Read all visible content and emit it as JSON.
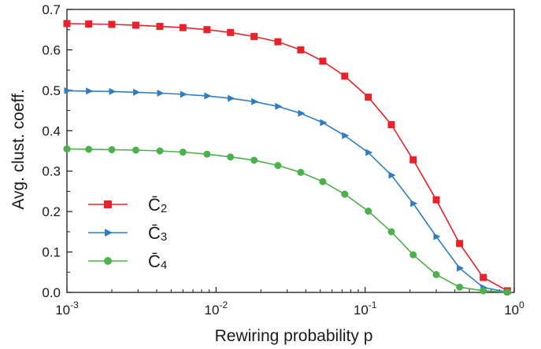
{
  "chart_data": {
    "type": "line",
    "xscale": "log",
    "xlabel": "Rewiring probability  p",
    "ylabel": "Avg. clust. coeff.",
    "xlim": [
      0.001,
      1
    ],
    "ylim": [
      0,
      0.7
    ],
    "xticks": [
      {
        "value": 0.001,
        "base": "10",
        "exp": "-3"
      },
      {
        "value": 0.01,
        "base": "10",
        "exp": "-2"
      },
      {
        "value": 0.1,
        "base": "10",
        "exp": "-1"
      },
      {
        "value": 1,
        "base": "10",
        "exp": "0"
      }
    ],
    "yticks": [
      "0.0",
      "0.1",
      "0.2",
      "0.3",
      "0.4",
      "0.5",
      "0.6",
      "0.7"
    ],
    "grid": false,
    "legend_position": "lower-left",
    "x": [
      0.001,
      0.0014,
      0.002,
      0.0029,
      0.0042,
      0.006,
      0.0087,
      0.0125,
      0.018,
      0.026,
      0.037,
      0.052,
      0.073,
      0.105,
      0.15,
      0.21,
      0.3,
      0.43,
      0.62,
      0.9
    ],
    "series": [
      {
        "name": "C̄2",
        "label_main": "C̄",
        "label_sub": "2",
        "color": "#e8222a",
        "marker": "square",
        "values": [
          0.665,
          0.664,
          0.663,
          0.661,
          0.658,
          0.655,
          0.65,
          0.643,
          0.633,
          0.62,
          0.6,
          0.572,
          0.535,
          0.483,
          0.415,
          0.328,
          0.229,
          0.121,
          0.037,
          0.004
        ]
      },
      {
        "name": "C̄3",
        "label_main": "C̄",
        "label_sub": "3",
        "color": "#2e7dc0",
        "marker": "triangle-right",
        "values": [
          0.499,
          0.498,
          0.497,
          0.495,
          0.493,
          0.49,
          0.486,
          0.48,
          0.472,
          0.46,
          0.443,
          0.42,
          0.388,
          0.346,
          0.29,
          0.22,
          0.138,
          0.06,
          0.012,
          0.001
        ]
      },
      {
        "name": "C̄4",
        "label_main": "C̄",
        "label_sub": "4",
        "color": "#4cb04c",
        "marker": "circle",
        "values": [
          0.355,
          0.354,
          0.353,
          0.352,
          0.35,
          0.347,
          0.342,
          0.335,
          0.327,
          0.314,
          0.297,
          0.274,
          0.243,
          0.201,
          0.15,
          0.093,
          0.044,
          0.013,
          0.004,
          0.0005
        ]
      }
    ]
  }
}
